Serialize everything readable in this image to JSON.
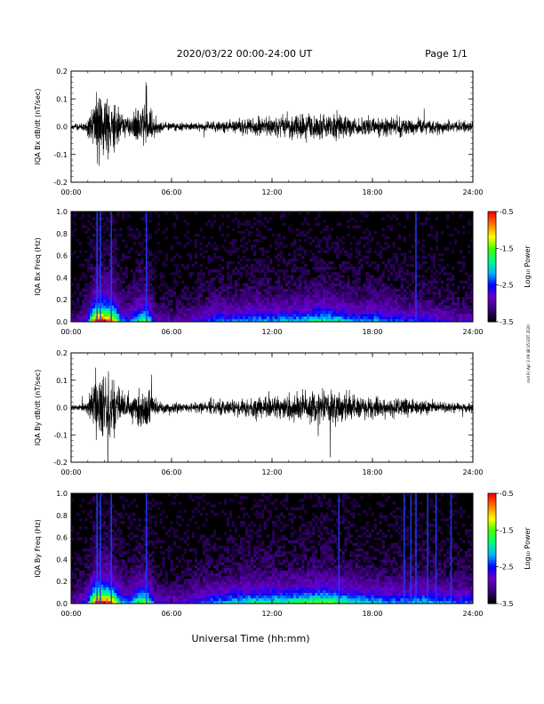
{
  "header": {
    "title": "2020/03/22  00:00-24:00 UT",
    "page": "Page 1/1"
  },
  "footer": {
    "xlabel": "Universal Time (hh:mm)",
    "stamp": "mdl Fri Apr 3 09:48:35 EDT 2020"
  },
  "colors": {
    "trace": "#000000",
    "spectrogram_background": "#000000",
    "colormap": [
      "#000000",
      "#3a007a",
      "#6a00c8",
      "#0000ff",
      "#00b4ff",
      "#00ff80",
      "#40ff00",
      "#ffff00",
      "#ff8000",
      "#ff0000"
    ]
  },
  "chart_data": [
    {
      "type": "line",
      "ylabel": "IQA Bx dB/dt (nT/sec)",
      "xlim": [
        0,
        24
      ],
      "ylim": [
        -0.2,
        0.2
      ],
      "xticks": [
        "00:00",
        "06:00",
        "12:00",
        "18:00",
        "24:00"
      ],
      "yticks": [
        "-0.2",
        "-0.1",
        "0.0",
        "0.1",
        "0.2"
      ],
      "envelope": {
        "hours": [
          0,
          0.5,
          1,
          1.5,
          2,
          2.5,
          3,
          3.5,
          4,
          4.5,
          5,
          6,
          7,
          8,
          9,
          10,
          11,
          12,
          13,
          14,
          15,
          16,
          17,
          18,
          19,
          20,
          21,
          22,
          23,
          24
        ],
        "amplitude": [
          0.015,
          0.02,
          0.05,
          0.22,
          0.22,
          0.2,
          0.08,
          0.06,
          0.12,
          0.15,
          0.05,
          0.03,
          0.025,
          0.03,
          0.04,
          0.05,
          0.06,
          0.06,
          0.07,
          0.08,
          0.09,
          0.08,
          0.06,
          0.06,
          0.06,
          0.06,
          0.05,
          0.04,
          0.035,
          0.03
        ]
      }
    },
    {
      "type": "heatmap",
      "ylabel": "IQA Bx Freq (Hz)",
      "xlim": [
        0,
        24
      ],
      "ylim": [
        0,
        1.0
      ],
      "xticks": [
        "00:00",
        "06:00",
        "12:00",
        "18:00",
        "24:00"
      ],
      "yticks": [
        "0.0",
        "0.2",
        "0.4",
        "0.6",
        "0.8",
        "1.0"
      ],
      "colorbar": {
        "label": "Log₁₀ Power",
        "range": [
          -3.5,
          -0.5
        ],
        "ticks": [
          "-0.5",
          "-1.5",
          "-2.5",
          "-3.5"
        ]
      },
      "activity": {
        "hours": [
          0,
          0.5,
          1,
          1.5,
          2,
          2.5,
          3,
          3.5,
          4,
          4.5,
          5,
          6,
          7,
          8,
          9,
          10,
          11,
          12,
          13,
          14,
          15,
          16,
          17,
          18,
          19,
          20,
          21,
          22,
          23,
          24
        ],
        "level": [
          0.1,
          0.15,
          0.3,
          0.95,
          0.9,
          0.8,
          0.35,
          0.3,
          0.5,
          0.6,
          0.2,
          0.15,
          0.2,
          0.3,
          0.35,
          0.35,
          0.4,
          0.4,
          0.4,
          0.45,
          0.5,
          0.45,
          0.35,
          0.4,
          0.35,
          0.3,
          0.3,
          0.25,
          0.2,
          0.2
        ]
      },
      "vertical_lines_hours": [
        1.55,
        1.75,
        2.4,
        4.5,
        20.6
      ]
    },
    {
      "type": "line",
      "ylabel": "IQA By dB/dt (nT/sec)",
      "xlim": [
        0,
        24
      ],
      "ylim": [
        -0.2,
        0.2
      ],
      "xticks": [
        "00:00",
        "06:00",
        "12:00",
        "18:00",
        "24:00"
      ],
      "yticks": [
        "-0.2",
        "-0.1",
        "0.0",
        "0.1",
        "0.2"
      ],
      "envelope": {
        "hours": [
          0,
          0.5,
          1,
          1.5,
          2,
          2.5,
          3,
          3.5,
          4,
          4.5,
          5,
          6,
          7,
          8,
          9,
          10,
          11,
          12,
          13,
          14,
          15,
          16,
          17,
          18,
          19,
          20,
          21,
          22,
          23,
          24
        ],
        "amplitude": [
          0.02,
          0.02,
          0.06,
          0.22,
          0.22,
          0.21,
          0.08,
          0.07,
          0.13,
          0.17,
          0.05,
          0.035,
          0.03,
          0.035,
          0.045,
          0.06,
          0.07,
          0.08,
          0.09,
          0.1,
          0.12,
          0.11,
          0.08,
          0.07,
          0.06,
          0.06,
          0.05,
          0.04,
          0.035,
          0.03
        ]
      }
    },
    {
      "type": "heatmap",
      "ylabel": "IQA By Freq (Hz)",
      "xlim": [
        0,
        24
      ],
      "ylim": [
        0,
        1.0
      ],
      "xticks": [
        "00:00",
        "06:00",
        "12:00",
        "18:00",
        "24:00"
      ],
      "yticks": [
        "0.0",
        "0.2",
        "0.4",
        "0.6",
        "0.8",
        "1.0"
      ],
      "colorbar": {
        "label": "Log₁₀ Power",
        "range": [
          -3.5,
          -0.5
        ],
        "ticks": [
          "-0.5",
          "-1.5",
          "-2.5",
          "-3.5"
        ]
      },
      "activity": {
        "hours": [
          0,
          0.5,
          1,
          1.5,
          2,
          2.5,
          3,
          3.5,
          4,
          4.5,
          5,
          6,
          7,
          8,
          9,
          10,
          11,
          12,
          13,
          14,
          15,
          16,
          17,
          18,
          19,
          20,
          21,
          22,
          23,
          24
        ],
        "level": [
          0.15,
          0.2,
          0.35,
          0.95,
          0.9,
          0.8,
          0.4,
          0.35,
          0.55,
          0.65,
          0.25,
          0.2,
          0.25,
          0.35,
          0.4,
          0.45,
          0.5,
          0.5,
          0.5,
          0.55,
          0.6,
          0.55,
          0.45,
          0.45,
          0.4,
          0.4,
          0.45,
          0.4,
          0.35,
          0.35
        ]
      },
      "vertical_lines_hours": [
        1.55,
        1.75,
        2.4,
        4.5,
        16.0,
        19.9,
        20.3,
        20.6,
        21.3,
        21.8,
        22.7
      ]
    }
  ]
}
